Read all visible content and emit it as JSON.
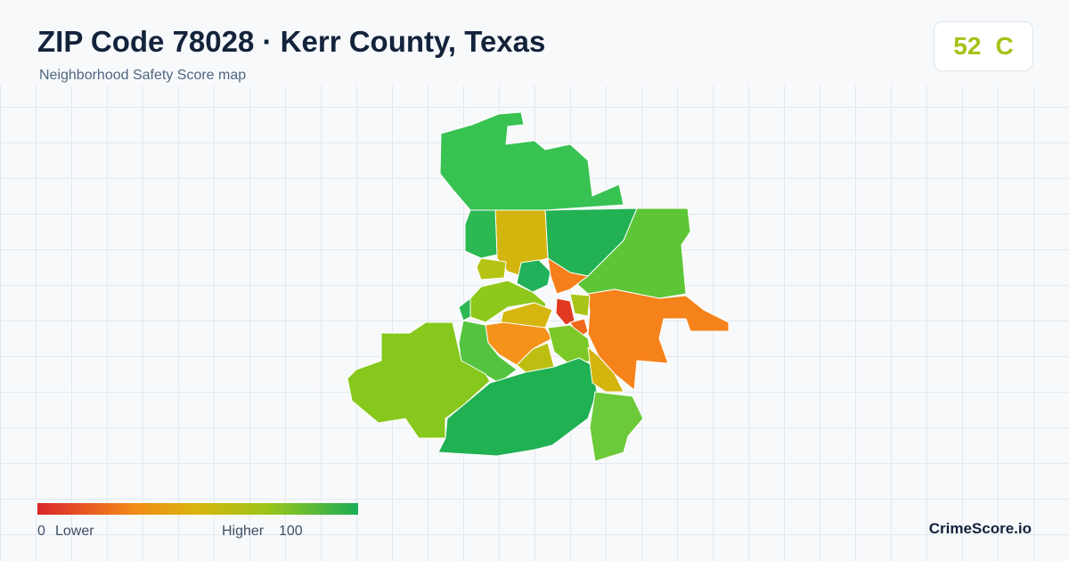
{
  "header": {
    "title": "ZIP Code 78028 · Kerr County, Texas",
    "subtitle": "Neighborhood Safety Score map"
  },
  "score": {
    "value": 52,
    "grade": "C"
  },
  "legend": {
    "min": 0,
    "min_label": "Lower",
    "max_label": "Higher",
    "max": 100
  },
  "footer": {
    "brand": "CrimeScore.io"
  }
}
